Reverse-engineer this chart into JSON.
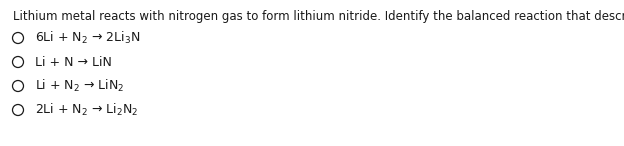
{
  "title": "Lithium metal reacts with nitrogen gas to form lithium nitride. Identify the balanced reaction that describes this process.",
  "options": [
    "6Li + N$_2$ → 2Li$_3$N",
    "Li + N → LiN",
    "Li + N$_2$ → LiN$_2$",
    "2Li + N$_2$ → Li$_2$N$_2$"
  ],
  "bg_color": "#ffffff",
  "text_color": "#1a1a1a",
  "title_fontsize": 8.5,
  "option_fontsize": 9.0,
  "fig_width": 6.24,
  "fig_height": 1.46,
  "dpi": 100
}
